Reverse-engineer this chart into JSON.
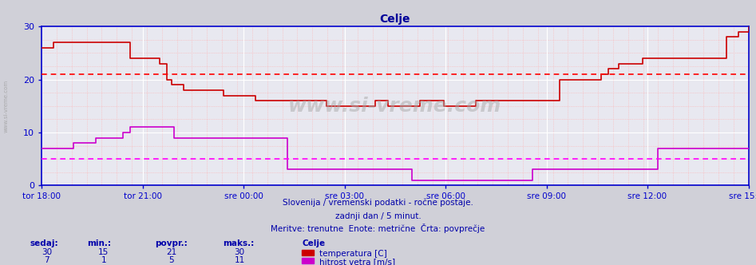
{
  "title": "Celje",
  "title_color": "#000099",
  "bg_color": "#d0d0d8",
  "plot_bg_color": "#e8e8f0",
  "grid_color_major": "#ffffff",
  "grid_color_minor": "#ffb0b0",
  "axis_color": "#0000cc",
  "text_color": "#0000aa",
  "ylim": [
    0,
    30
  ],
  "yticks": [
    0,
    10,
    20,
    30
  ],
  "xtick_labels": [
    "tor 18:00",
    "tor 21:00",
    "sre 00:00",
    "sre 03:00",
    "sre 06:00",
    "sre 09:00",
    "sre 12:00",
    "sre 15:00"
  ],
  "temp_color": "#cc0000",
  "wind_color": "#cc00cc",
  "temp_avg_line": 21,
  "wind_avg_line": 5,
  "temp_avg_color": "#ff0000",
  "wind_avg_color": "#ff00ff",
  "watermark": "www.si-vreme.com",
  "subtitle1": "Slovenija / vremenski podatki - ročne postaje.",
  "subtitle2": "zadnji dan / 5 minut.",
  "subtitle3": "Meritve: trenutne  Enote: metrične  Črta: povprečje",
  "legend_title": "Celje",
  "legend_items": [
    "temperatura [C]",
    "hitrost vetra [m/s]"
  ],
  "legend_colors": [
    "#cc0000",
    "#cc00cc"
  ],
  "stats_headers": [
    "sedaj:",
    "min.:",
    "povpr.:",
    "maks.:"
  ],
  "stats_temp": [
    30,
    15,
    21,
    30
  ],
  "stats_wind": [
    7,
    1,
    5,
    11
  ],
  "n_points": 289,
  "temp_data": [
    26,
    26,
    26,
    26,
    26,
    27,
    27,
    27,
    27,
    27,
    27,
    27,
    27,
    27,
    27,
    27,
    27,
    27,
    27,
    27,
    27,
    27,
    27,
    27,
    27,
    27,
    27,
    27,
    27,
    27,
    27,
    27,
    27,
    27,
    27,
    27,
    24,
    24,
    24,
    24,
    24,
    24,
    24,
    24,
    24,
    24,
    24,
    24,
    23,
    23,
    23,
    20,
    20,
    19,
    19,
    19,
    19,
    19,
    18,
    18,
    18,
    18,
    18,
    18,
    18,
    18,
    18,
    18,
    18,
    18,
    18,
    18,
    18,
    18,
    17,
    17,
    17,
    17,
    17,
    17,
    17,
    17,
    17,
    17,
    17,
    17,
    17,
    16,
    16,
    16,
    16,
    16,
    16,
    16,
    16,
    16,
    16,
    16,
    16,
    16,
    16,
    16,
    16,
    16,
    16,
    16,
    16,
    16,
    16,
    16,
    16,
    16,
    16,
    16,
    16,
    16,
    15,
    15,
    15,
    15,
    15,
    15,
    15,
    15,
    15,
    15,
    15,
    15,
    15,
    15,
    15,
    15,
    15,
    15,
    15,
    15,
    16,
    16,
    16,
    16,
    16,
    15,
    15,
    15,
    15,
    15,
    15,
    15,
    15,
    15,
    15,
    15,
    15,
    15,
    16,
    16,
    16,
    16,
    16,
    16,
    16,
    16,
    16,
    16,
    15,
    15,
    15,
    15,
    15,
    15,
    15,
    15,
    15,
    15,
    15,
    15,
    15,
    16,
    16,
    16,
    16,
    16,
    16,
    16,
    16,
    16,
    16,
    16,
    16,
    16,
    16,
    16,
    16,
    16,
    16,
    16,
    16,
    16,
    16,
    16,
    16,
    16,
    16,
    16,
    16,
    16,
    16,
    16,
    16,
    16,
    16,
    20,
    20,
    20,
    20,
    20,
    20,
    20,
    20,
    20,
    20,
    20,
    20,
    20,
    20,
    20,
    20,
    20,
    21,
    21,
    21,
    22,
    22,
    22,
    22,
    23,
    23,
    23,
    23,
    23,
    23,
    23,
    23,
    23,
    23,
    24,
    24,
    24,
    24,
    24,
    24,
    24,
    24,
    24,
    24,
    24,
    24,
    24,
    24,
    24,
    24,
    24,
    24,
    24,
    24,
    24,
    24,
    24,
    24,
    24,
    24,
    24,
    24,
    24,
    24,
    24,
    24,
    24,
    24,
    28,
    28,
    28,
    28,
    28,
    29,
    29,
    29,
    29,
    30
  ],
  "wind_data": [
    7,
    7,
    7,
    7,
    7,
    7,
    7,
    7,
    7,
    7,
    7,
    7,
    7,
    8,
    8,
    8,
    8,
    8,
    8,
    8,
    8,
    8,
    9,
    9,
    9,
    9,
    9,
    9,
    9,
    9,
    9,
    9,
    9,
    10,
    10,
    10,
    11,
    11,
    11,
    11,
    11,
    11,
    11,
    11,
    11,
    11,
    11,
    11,
    11,
    11,
    11,
    11,
    11,
    11,
    9,
    9,
    9,
    9,
    9,
    9,
    9,
    9,
    9,
    9,
    9,
    9,
    9,
    9,
    9,
    9,
    9,
    9,
    9,
    9,
    9,
    9,
    9,
    9,
    9,
    9,
    9,
    9,
    9,
    9,
    9,
    9,
    9,
    9,
    9,
    9,
    9,
    9,
    9,
    9,
    9,
    9,
    9,
    9,
    9,
    9,
    3,
    3,
    3,
    3,
    3,
    3,
    3,
    3,
    3,
    3,
    3,
    3,
    3,
    3,
    3,
    3,
    3,
    3,
    3,
    3,
    3,
    3,
    3,
    3,
    3,
    3,
    3,
    3,
    3,
    3,
    3,
    3,
    3,
    3,
    3,
    3,
    3,
    3,
    3,
    3,
    3,
    3,
    3,
    3,
    3,
    3,
    3,
    3,
    3,
    3,
    3,
    1,
    1,
    1,
    1,
    1,
    1,
    1,
    1,
    1,
    1,
    1,
    1,
    1,
    1,
    1,
    1,
    1,
    1,
    1,
    1,
    1,
    1,
    1,
    1,
    1,
    1,
    1,
    1,
    1,
    1,
    1,
    1,
    1,
    1,
    1,
    1,
    1,
    1,
    1,
    1,
    1,
    1,
    1,
    1,
    1,
    1,
    1,
    1,
    1,
    3,
    3,
    3,
    3,
    3,
    3,
    3,
    3,
    3,
    3,
    3,
    3,
    3,
    3,
    3,
    3,
    3,
    3,
    3,
    3,
    3,
    3,
    3,
    3,
    3,
    3,
    3,
    3,
    3,
    3,
    3,
    3,
    3,
    3,
    3,
    3,
    3,
    3,
    3,
    3,
    3,
    3,
    3,
    3,
    3,
    3,
    3,
    3,
    3,
    3,
    3,
    7,
    7,
    7,
    7,
    7,
    7,
    7,
    7,
    7,
    7,
    7,
    7,
    7,
    7,
    7,
    7,
    7,
    7,
    7,
    7,
    7,
    7,
    7,
    7,
    7,
    7,
    7,
    7,
    7,
    7,
    7,
    7,
    7,
    7,
    7,
    7,
    7,
    7
  ]
}
